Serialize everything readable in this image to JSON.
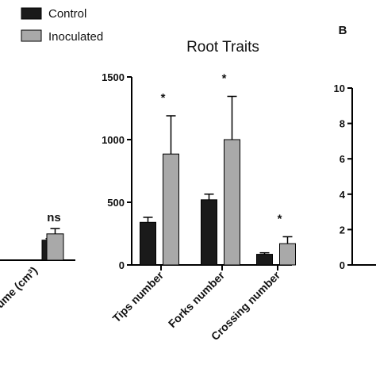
{
  "legend": {
    "items": [
      {
        "label": "Control",
        "color": "#1a1a1a"
      },
      {
        "label": "Inoculated",
        "color": "#a9a9a9"
      }
    ]
  },
  "panel_b_label": "B",
  "chart_data": [
    {
      "type": "bar",
      "title": "",
      "categories": [
        "ume (cm³)"
      ],
      "series": [
        {
          "name": "Control",
          "values": [
            160
          ],
          "errors": [
            12
          ],
          "color": "#1a1a1a"
        },
        {
          "name": "Inoculated",
          "values": [
            210
          ],
          "errors": [
            42
          ],
          "color": "#a9a9a9"
        }
      ],
      "annotations": [
        "ns"
      ],
      "xlabel": "",
      "ylabel": "",
      "ylim": [
        0,
        1500
      ],
      "grid": false,
      "legend_placement": "top-left"
    },
    {
      "type": "bar",
      "title": "Root Traits",
      "categories": [
        "Tips number",
        "Forks number",
        "Crossing number"
      ],
      "series": [
        {
          "name": "Control",
          "values": [
            340,
            520,
            85
          ],
          "errors": [
            40,
            45,
            12
          ],
          "color": "#1a1a1a"
        },
        {
          "name": "Inoculated",
          "values": [
            885,
            1000,
            170
          ],
          "errors": [
            305,
            345,
            55
          ],
          "color": "#a9a9a9"
        }
      ],
      "annotations": [
        "*",
        "*",
        "*"
      ],
      "yticks": [
        "0",
        "500",
        "1000",
        "1500"
      ],
      "xlabel": "",
      "ylabel": "",
      "ylim": [
        0,
        1500
      ],
      "grid": false
    },
    {
      "type": "bar",
      "title": "",
      "categories": [],
      "series": [],
      "yticks": [
        "0",
        "2",
        "4",
        "6",
        "8",
        "10"
      ],
      "ylim": [
        0,
        10
      ],
      "xlabel": "",
      "ylabel": "",
      "grid": false
    }
  ]
}
